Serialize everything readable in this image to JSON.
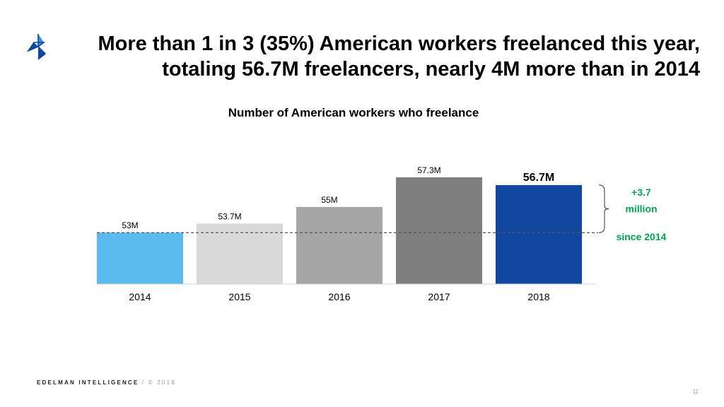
{
  "headline": {
    "line1": "More than 1 in 3 (35%) American workers freelanced this year,",
    "line2": "totaling 56.7M freelancers, nearly 4M more than in 2014"
  },
  "chart_data": {
    "type": "bar",
    "title": "Number of American workers who freelance",
    "xlabel": "",
    "ylabel": "",
    "unit": "M",
    "categories": [
      "2014",
      "2015",
      "2016",
      "2017",
      "2018"
    ],
    "values": [
      53,
      53.7,
      55,
      57.3,
      56.7
    ],
    "data_labels": [
      "53M",
      "53.7M",
      "55M",
      "57.3M",
      "56.7M"
    ],
    "bar_colors": [
      "#5bbaf0",
      "#d9d9d9",
      "#a6a6a6",
      "#7f7f7f",
      "#11479e"
    ],
    "highlight_index": 4,
    "baseline_value": 53,
    "ylim": [
      49,
      57.3
    ],
    "annotation": {
      "line1": "+3.7",
      "line2": "million",
      "line3": "since 2014",
      "color": "#00a650"
    }
  },
  "footer": {
    "brand": "EDELMAN INTELLIGENCE",
    "separator": " / ",
    "copyright": "© 2018"
  },
  "page_number": "11",
  "colors": {
    "logo_dark": "#11479e",
    "logo_light": "#3a8fd8"
  }
}
